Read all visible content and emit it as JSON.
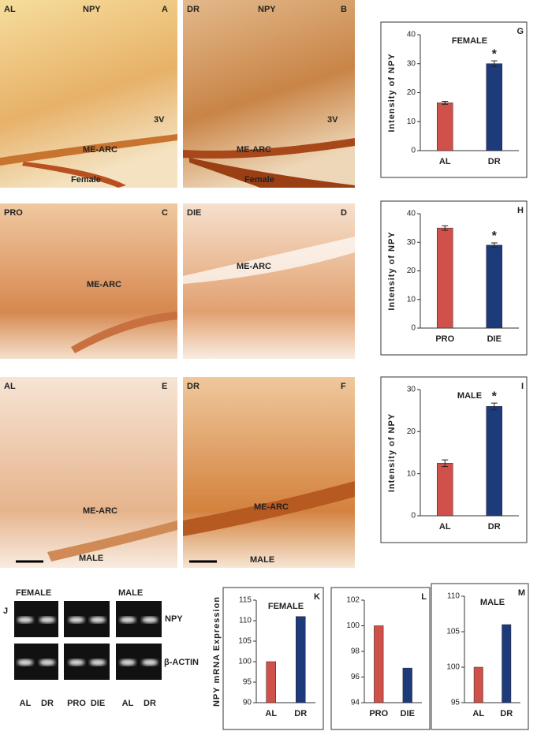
{
  "micrographs": [
    {
      "labels": [
        "AL",
        "NPY",
        "A",
        "3V",
        "ME-ARC",
        "Female"
      ]
    },
    {
      "labels": [
        "DR",
        "NPY",
        "B",
        "3V",
        "ME-ARC",
        "Female"
      ]
    },
    {
      "labels": [
        "PRO",
        "C",
        "ME-ARC"
      ]
    },
    {
      "labels": [
        "DIE",
        "D",
        "ME-ARC"
      ]
    },
    {
      "labels": [
        "AL",
        "E",
        "ME-ARC",
        "MALE"
      ]
    },
    {
      "labels": [
        "DR",
        "F",
        "ME-ARC",
        "MALE"
      ]
    }
  ],
  "gel": {
    "panel": "J",
    "groups": [
      "FEMALE",
      "MALE"
    ],
    "genes": [
      "NPY",
      "β-ACTIN"
    ],
    "lanes": [
      "AL",
      "DR",
      "PRO",
      "DIE",
      "AL",
      "DR"
    ]
  },
  "chart_data": [
    {
      "type": "bar",
      "panel": "G",
      "title": "FEMALE",
      "y_label": "Intensity of NPY",
      "categories": [
        "AL",
        "DR"
      ],
      "values": [
        16.5,
        30
      ],
      "errors": [
        0.5,
        1
      ],
      "colors": [
        "#d0504a",
        "#1d3a7a"
      ],
      "annotation": "*",
      "ylim": [
        0,
        40
      ],
      "yticks": [
        0,
        10,
        20,
        30,
        40
      ]
    },
    {
      "type": "bar",
      "panel": "H",
      "y_label": "Intensity of NPY",
      "categories": [
        "PRO",
        "DIE"
      ],
      "values": [
        35,
        29
      ],
      "errors": [
        0.8,
        0.8
      ],
      "colors": [
        "#d0504a",
        "#1d3a7a"
      ],
      "annotation": "*",
      "ylim": [
        0,
        40
      ],
      "yticks": [
        0,
        10,
        20,
        30,
        40
      ]
    },
    {
      "type": "bar",
      "panel": "I",
      "title": "MALE",
      "y_label": "Intensity of NPY",
      "categories": [
        "AL",
        "DR"
      ],
      "values": [
        12.5,
        26
      ],
      "errors": [
        0.8,
        0.8
      ],
      "colors": [
        "#d0504a",
        "#1d3a7a"
      ],
      "annotation": "*",
      "ylim": [
        0,
        30
      ],
      "yticks": [
        0,
        10,
        20,
        30
      ]
    },
    {
      "type": "bar",
      "panel": "K",
      "title": "FEMALE",
      "y_label": "NPY mRNA Expression",
      "categories": [
        "AL",
        "DR"
      ],
      "values": [
        100,
        111
      ],
      "colors": [
        "#d0504a",
        "#1d3a7a"
      ],
      "ylim": [
        90,
        115
      ],
      "yticks": [
        90,
        95,
        100,
        105,
        110,
        115
      ]
    },
    {
      "type": "bar",
      "panel": "L",
      "categories": [
        "PRO",
        "DIE"
      ],
      "values": [
        100,
        96.7
      ],
      "colors": [
        "#d0504a",
        "#1d3a7a"
      ],
      "ylim": [
        94,
        102
      ],
      "yticks": [
        94,
        96,
        98,
        100,
        102
      ]
    },
    {
      "type": "bar",
      "panel": "M",
      "title": "MALE",
      "categories": [
        "AL",
        "DR"
      ],
      "values": [
        100,
        106
      ],
      "colors": [
        "#d0504a",
        "#1d3a7a"
      ],
      "ylim": [
        95,
        110
      ],
      "yticks": [
        95,
        100,
        105,
        110
      ]
    }
  ]
}
